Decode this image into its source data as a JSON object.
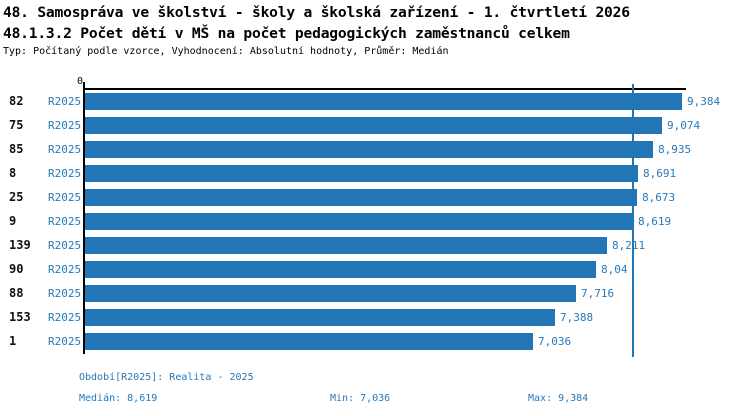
{
  "header": {
    "title1": "48. Samospráva ve školství - školy a školská zařízení - 1. čtvrtletí 2026",
    "title2": "48.1.3.2 Počet dětí v MŠ na počet pedagogických zaměstnanců celkem",
    "subtitle": "Typ: Počítaný podle vzorce, Vyhodnocení: Absolutní hodnoty, Průměr: Medián"
  },
  "chart_data": {
    "type": "bar",
    "orientation": "horizontal",
    "title": "48.1.3.2 Počet dětí v MŠ na počet pedagogických zaměstnanců celkem",
    "categories": [
      "82",
      "75",
      "85",
      "8",
      "25",
      "9",
      "139",
      "90",
      "88",
      "153",
      "1"
    ],
    "series_label": "R2025",
    "values": [
      9.384,
      9.074,
      8.935,
      8.691,
      8.673,
      8.619,
      8.211,
      8.04,
      7.716,
      7.388,
      7.036
    ],
    "value_labels": [
      "9,384",
      "9,074",
      "8,935",
      "8,691",
      "8,673",
      "8,619",
      "8,211",
      "8,04",
      "7,716",
      "7,388",
      "7,036"
    ],
    "axis_origin_label": "0",
    "xlim": [
      0,
      9.384
    ],
    "median_value": 8.619,
    "grid": false,
    "legend_position": "none",
    "bar_color": "#2376b5",
    "median_line_color": "#2376b5",
    "label_color": "#2878b8"
  },
  "footer": {
    "period_label": "Období[R2025]: Realita - 2025",
    "median_label": "Medián: 8,619",
    "min_label": "Min: 7,036",
    "max_label": "Max: 9,384"
  }
}
